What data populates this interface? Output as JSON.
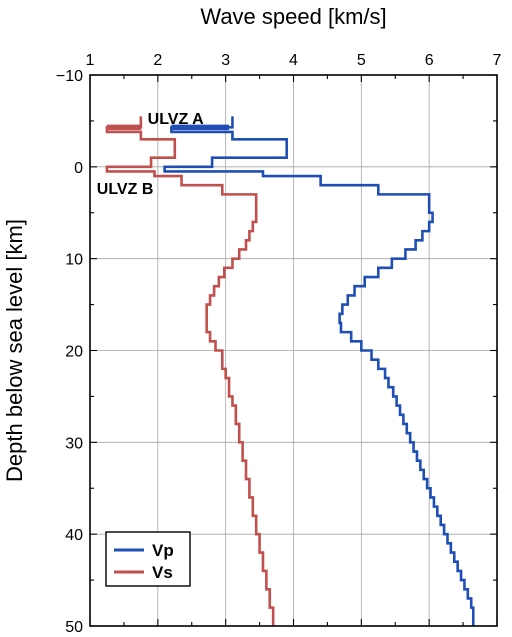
{
  "chart_data": {
    "type": "line",
    "title": "",
    "xlabel": "Wave speed [km/s]",
    "ylabel": "Depth below sea level [km]",
    "xlim": [
      1,
      7
    ],
    "ylim": [
      -10,
      50
    ],
    "y_inverted": true,
    "x_axis_position": "top",
    "x_ticks": [
      1,
      2,
      3,
      4,
      5,
      6,
      7
    ],
    "y_ticks": [
      -10,
      0,
      10,
      20,
      30,
      40,
      50
    ],
    "x_tick_labels": [
      "1",
      "2",
      "3",
      "4",
      "5",
      "6",
      "7"
    ],
    "y_tick_labels": [
      "−10",
      "0",
      "10",
      "20",
      "30",
      "40",
      "50"
    ],
    "grid": true,
    "legend_position": "bottom-left",
    "series": [
      {
        "name": "Vp",
        "color": "#1f4fb4",
        "step": "velocity-by-layer",
        "points": [
          [
            3.1,
            -5.5
          ],
          [
            3.1,
            -4.3
          ],
          [
            2.2,
            -4.3
          ],
          [
            2.2,
            -3.8
          ],
          [
            3.1,
            -3.8
          ],
          [
            3.1,
            -3.0
          ],
          [
            3.9,
            -3.0
          ],
          [
            3.9,
            -1.0
          ],
          [
            2.8,
            -1.0
          ],
          [
            2.8,
            0.0
          ],
          [
            2.1,
            0.0
          ],
          [
            2.1,
            0.5
          ],
          [
            3.55,
            0.5
          ],
          [
            3.55,
            1.0
          ],
          [
            4.4,
            1.0
          ],
          [
            4.4,
            2.0
          ],
          [
            5.25,
            2.0
          ],
          [
            5.25,
            3.0
          ],
          [
            6.0,
            3.0
          ],
          [
            6.0,
            5.0
          ],
          [
            6.05,
            5.0
          ],
          [
            6.05,
            6.0
          ],
          [
            6.0,
            6.0
          ],
          [
            6.0,
            7.0
          ],
          [
            5.9,
            7.0
          ],
          [
            5.9,
            8.0
          ],
          [
            5.8,
            8.0
          ],
          [
            5.8,
            9.0
          ],
          [
            5.65,
            9.0
          ],
          [
            5.65,
            10.0
          ],
          [
            5.45,
            10.0
          ],
          [
            5.45,
            11.0
          ],
          [
            5.25,
            11.0
          ],
          [
            5.25,
            12.0
          ],
          [
            5.05,
            12.0
          ],
          [
            5.05,
            13.0
          ],
          [
            4.9,
            13.0
          ],
          [
            4.9,
            14.0
          ],
          [
            4.8,
            14.0
          ],
          [
            4.8,
            15.0
          ],
          [
            4.72,
            15.0
          ],
          [
            4.72,
            16.0
          ],
          [
            4.68,
            16.0
          ],
          [
            4.68,
            17.0
          ],
          [
            4.7,
            17.0
          ],
          [
            4.7,
            18.0
          ],
          [
            4.85,
            18.0
          ],
          [
            4.85,
            19.0
          ],
          [
            5.0,
            19.0
          ],
          [
            5.0,
            20.0
          ],
          [
            5.15,
            20.0
          ],
          [
            5.15,
            21.0
          ],
          [
            5.25,
            21.0
          ],
          [
            5.25,
            22.0
          ],
          [
            5.35,
            22.0
          ],
          [
            5.35,
            23.0
          ],
          [
            5.4,
            23.0
          ],
          [
            5.4,
            24.0
          ],
          [
            5.47,
            24.0
          ],
          [
            5.47,
            25.0
          ],
          [
            5.52,
            25.0
          ],
          [
            5.52,
            26.0
          ],
          [
            5.57,
            26.0
          ],
          [
            5.57,
            27.0
          ],
          [
            5.62,
            27.0
          ],
          [
            5.62,
            28.0
          ],
          [
            5.67,
            28.0
          ],
          [
            5.67,
            29.0
          ],
          [
            5.72,
            29.0
          ],
          [
            5.72,
            30.0
          ],
          [
            5.77,
            30.0
          ],
          [
            5.77,
            31.0
          ],
          [
            5.82,
            31.0
          ],
          [
            5.82,
            32.0
          ],
          [
            5.87,
            32.0
          ],
          [
            5.87,
            33.0
          ],
          [
            5.92,
            33.0
          ],
          [
            5.92,
            34.0
          ],
          [
            5.97,
            34.0
          ],
          [
            5.97,
            35.0
          ],
          [
            6.02,
            35.0
          ],
          [
            6.02,
            36.0
          ],
          [
            6.07,
            36.0
          ],
          [
            6.07,
            37.0
          ],
          [
            6.12,
            37.0
          ],
          [
            6.12,
            38.0
          ],
          [
            6.17,
            38.0
          ],
          [
            6.17,
            39.0
          ],
          [
            6.22,
            39.0
          ],
          [
            6.22,
            40.0
          ],
          [
            6.27,
            40.0
          ],
          [
            6.27,
            41.0
          ],
          [
            6.32,
            41.0
          ],
          [
            6.32,
            42.0
          ],
          [
            6.37,
            42.0
          ],
          [
            6.37,
            43.0
          ],
          [
            6.42,
            43.0
          ],
          [
            6.42,
            44.0
          ],
          [
            6.47,
            44.0
          ],
          [
            6.47,
            45.0
          ],
          [
            6.52,
            45.0
          ],
          [
            6.52,
            46.0
          ],
          [
            6.57,
            46.0
          ],
          [
            6.57,
            47.0
          ],
          [
            6.62,
            47.0
          ],
          [
            6.62,
            48.0
          ],
          [
            6.65,
            48.0
          ],
          [
            6.65,
            50.0
          ]
        ]
      },
      {
        "name": "Vs",
        "color": "#c0504d",
        "step": "velocity-by-layer",
        "points": [
          [
            1.75,
            -5.5
          ],
          [
            1.75,
            -4.3
          ],
          [
            1.25,
            -4.3
          ],
          [
            1.25,
            -3.8
          ],
          [
            1.75,
            -3.8
          ],
          [
            1.75,
            -3.0
          ],
          [
            2.25,
            -3.0
          ],
          [
            2.25,
            -1.0
          ],
          [
            1.9,
            -1.0
          ],
          [
            1.9,
            0.0
          ],
          [
            1.25,
            0.0
          ],
          [
            1.25,
            0.5
          ],
          [
            1.95,
            0.5
          ],
          [
            1.95,
            1.0
          ],
          [
            2.35,
            1.0
          ],
          [
            2.35,
            2.0
          ],
          [
            2.95,
            2.0
          ],
          [
            2.95,
            3.0
          ],
          [
            3.45,
            3.0
          ],
          [
            3.45,
            6.0
          ],
          [
            3.4,
            6.0
          ],
          [
            3.4,
            7.0
          ],
          [
            3.35,
            7.0
          ],
          [
            3.35,
            8.0
          ],
          [
            3.3,
            8.0
          ],
          [
            3.3,
            9.0
          ],
          [
            3.2,
            9.0
          ],
          [
            3.2,
            10.0
          ],
          [
            3.1,
            10.0
          ],
          [
            3.1,
            11.0
          ],
          [
            2.98,
            11.0
          ],
          [
            2.98,
            12.0
          ],
          [
            2.9,
            12.0
          ],
          [
            2.9,
            13.0
          ],
          [
            2.83,
            13.0
          ],
          [
            2.83,
            14.0
          ],
          [
            2.77,
            14.0
          ],
          [
            2.77,
            15.0
          ],
          [
            2.72,
            15.0
          ],
          [
            2.72,
            18.0
          ],
          [
            2.77,
            18.0
          ],
          [
            2.77,
            19.0
          ],
          [
            2.85,
            19.0
          ],
          [
            2.85,
            20.0
          ],
          [
            2.95,
            20.0
          ],
          [
            2.95,
            22.0
          ],
          [
            3.0,
            22.0
          ],
          [
            3.0,
            23.0
          ],
          [
            3.05,
            23.0
          ],
          [
            3.05,
            25.0
          ],
          [
            3.1,
            25.0
          ],
          [
            3.1,
            26.0
          ],
          [
            3.15,
            26.0
          ],
          [
            3.15,
            28.0
          ],
          [
            3.2,
            28.0
          ],
          [
            3.2,
            30.0
          ],
          [
            3.25,
            30.0
          ],
          [
            3.25,
            32.0
          ],
          [
            3.3,
            32.0
          ],
          [
            3.3,
            34.0
          ],
          [
            3.35,
            34.0
          ],
          [
            3.35,
            36.0
          ],
          [
            3.4,
            36.0
          ],
          [
            3.4,
            38.0
          ],
          [
            3.45,
            38.0
          ],
          [
            3.45,
            40.0
          ],
          [
            3.5,
            40.0
          ],
          [
            3.5,
            42.0
          ],
          [
            3.55,
            42.0
          ],
          [
            3.55,
            44.0
          ],
          [
            3.6,
            44.0
          ],
          [
            3.6,
            46.0
          ],
          [
            3.65,
            46.0
          ],
          [
            3.65,
            48.0
          ],
          [
            3.7,
            48.0
          ],
          [
            3.7,
            50.0
          ]
        ]
      }
    ],
    "highlights": [
      {
        "series": "Vp",
        "x": [
          2.2,
          3.05
        ],
        "y": -4.3,
        "color": "#1f4fb4"
      },
      {
        "series": "Vs",
        "x": [
          1.25,
          1.75
        ],
        "y": -4.3,
        "color": "#c0504d"
      }
    ],
    "annotations": [
      {
        "text": "ULVZ A",
        "x": 1.85,
        "y": -5.3
      },
      {
        "text": "ULVZ B",
        "x": 1.1,
        "y": 2.3
      }
    ]
  }
}
